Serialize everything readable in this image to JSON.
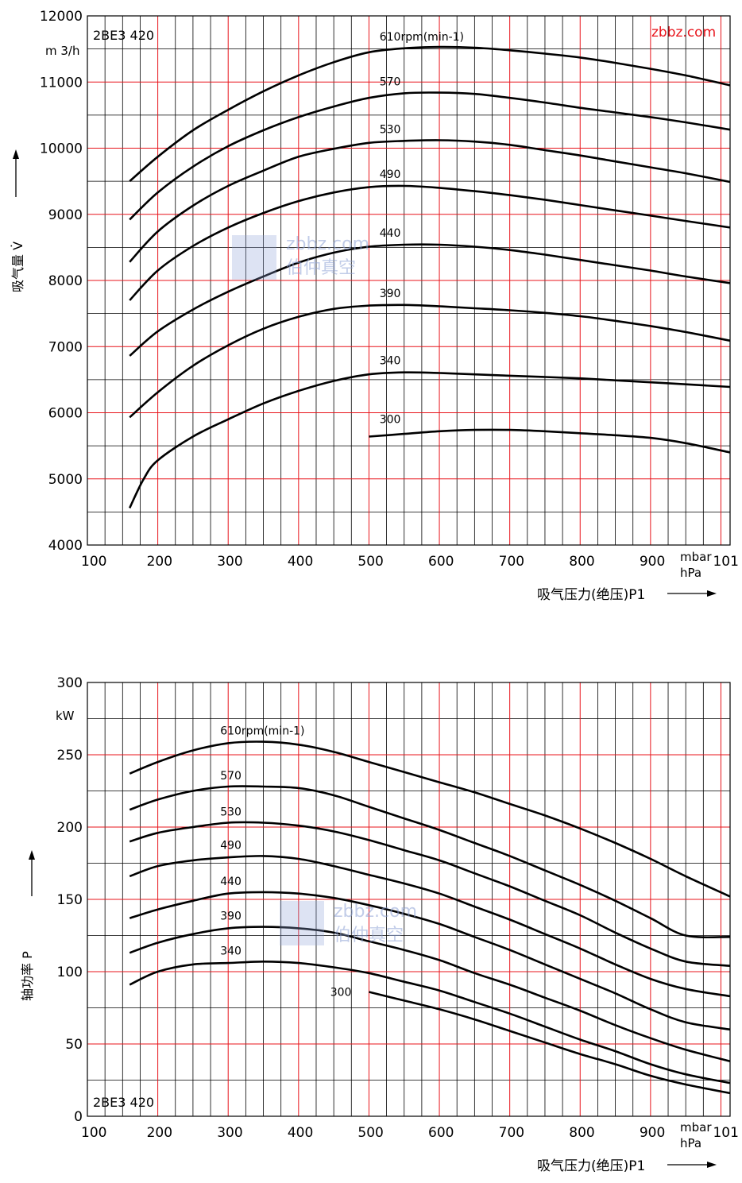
{
  "site_label": "zbbz.com",
  "watermark": {
    "line1": "zbbz.com",
    "line2": "伯仲真空"
  },
  "chart_data": [
    {
      "type": "line",
      "model": "2BE3 420",
      "y_unit": "m 3/h",
      "ylabel": "吸气量 V̇",
      "xlabel": "吸气压力(绝压)P1",
      "x_unit_1": "mbar",
      "x_unit_2": "hPa",
      "xlim": [
        100,
        1013
      ],
      "ylim": [
        4000,
        12000
      ],
      "x_ticks": [
        "100",
        "200",
        "300",
        "400",
        "500",
        "600",
        "700",
        "800",
        "900",
        "101"
      ],
      "y_ticks": [
        "4000",
        "5000",
        "6000",
        "7000",
        "8000",
        "9000",
        "10000",
        "11000",
        "12000"
      ],
      "series": [
        {
          "name": "610rpm(min-1)",
          "x": [
            160,
            200,
            250,
            300,
            350,
            400,
            450,
            500,
            550,
            600,
            650,
            700,
            750,
            800,
            850,
            900,
            950,
            1013
          ],
          "y": [
            9500,
            9870,
            10270,
            10580,
            10860,
            11100,
            11300,
            11450,
            11510,
            11530,
            11520,
            11480,
            11430,
            11370,
            11290,
            11200,
            11100,
            10950
          ]
        },
        {
          "name": "570",
          "x": [
            160,
            200,
            250,
            300,
            350,
            400,
            450,
            500,
            550,
            600,
            650,
            700,
            750,
            800,
            850,
            900,
            950,
            1013
          ],
          "y": [
            8920,
            9330,
            9720,
            10030,
            10270,
            10470,
            10630,
            10760,
            10830,
            10840,
            10820,
            10760,
            10690,
            10610,
            10540,
            10470,
            10390,
            10280
          ]
        },
        {
          "name": "530",
          "x": [
            160,
            200,
            250,
            300,
            350,
            400,
            450,
            500,
            550,
            600,
            650,
            700,
            750,
            800,
            850,
            900,
            950,
            1013
          ],
          "y": [
            8280,
            8740,
            9130,
            9430,
            9660,
            9870,
            9990,
            10080,
            10110,
            10120,
            10100,
            10050,
            9970,
            9890,
            9800,
            9710,
            9620,
            9490
          ]
        },
        {
          "name": "490",
          "x": [
            160,
            200,
            250,
            300,
            350,
            400,
            450,
            500,
            550,
            600,
            650,
            700,
            750,
            800,
            850,
            900,
            950,
            1013
          ],
          "y": [
            7700,
            8150,
            8520,
            8800,
            9020,
            9200,
            9330,
            9410,
            9430,
            9400,
            9350,
            9290,
            9220,
            9140,
            9060,
            8980,
            8900,
            8800
          ]
        },
        {
          "name": "440",
          "x": [
            160,
            200,
            250,
            300,
            350,
            400,
            450,
            500,
            550,
            600,
            650,
            700,
            750,
            800,
            850,
            900,
            950,
            1013
          ],
          "y": [
            6860,
            7230,
            7560,
            7830,
            8060,
            8270,
            8420,
            8510,
            8540,
            8540,
            8510,
            8460,
            8390,
            8310,
            8230,
            8150,
            8060,
            7960
          ]
        },
        {
          "name": "390",
          "x": [
            160,
            200,
            250,
            300,
            350,
            400,
            450,
            500,
            550,
            600,
            650,
            700,
            750,
            800,
            850,
            900,
            950,
            1013
          ],
          "y": [
            5930,
            6310,
            6710,
            7020,
            7270,
            7450,
            7570,
            7620,
            7630,
            7610,
            7580,
            7550,
            7510,
            7460,
            7390,
            7310,
            7220,
            7090
          ]
        },
        {
          "name": "340",
          "x": [
            160,
            180,
            200,
            250,
            300,
            350,
            400,
            450,
            500,
            550,
            600,
            650,
            700,
            750,
            800,
            850,
            900,
            950,
            1013
          ],
          "y": [
            4560,
            5000,
            5280,
            5640,
            5900,
            6140,
            6330,
            6480,
            6580,
            6610,
            6600,
            6580,
            6560,
            6540,
            6520,
            6490,
            6460,
            6430,
            6390
          ]
        },
        {
          "name": "300",
          "x": [
            500,
            550,
            600,
            650,
            700,
            750,
            800,
            850,
            900,
            950,
            1013
          ],
          "y": [
            5640,
            5680,
            5720,
            5740,
            5740,
            5720,
            5690,
            5660,
            5620,
            5540,
            5400
          ]
        }
      ]
    },
    {
      "type": "line",
      "model": "2BE3 420",
      "y_unit": "kW",
      "ylabel": "轴功率 P",
      "xlabel": "吸气压力(绝压)P1",
      "x_unit_1": "mbar",
      "x_unit_2": "hPa",
      "xlim": [
        100,
        1013
      ],
      "ylim": [
        0,
        300
      ],
      "x_ticks": [
        "100",
        "200",
        "300",
        "400",
        "500",
        "600",
        "700",
        "800",
        "900",
        "101"
      ],
      "y_ticks": [
        "0",
        "50",
        "100",
        "150",
        "200",
        "250",
        "300"
      ],
      "series": [
        {
          "name": "610rpm(min-1)",
          "x": [
            160,
            200,
            250,
            300,
            350,
            400,
            450,
            500,
            550,
            600,
            650,
            700,
            750,
            800,
            850,
            900,
            950,
            1013
          ],
          "y": [
            237,
            245,
            253,
            258,
            259,
            257,
            252,
            245,
            238,
            231,
            224,
            216,
            208,
            199,
            189,
            178,
            166,
            152
          ]
        },
        {
          "name": "570",
          "x": [
            160,
            200,
            250,
            300,
            350,
            400,
            450,
            500,
            550,
            600,
            650,
            700,
            750,
            800,
            850,
            900,
            950,
            1013
          ],
          "y": [
            212,
            219,
            225,
            228,
            228,
            227,
            222,
            214,
            206,
            198,
            189,
            180,
            170,
            160,
            149,
            137,
            125,
            124
          ]
        },
        {
          "name": "530",
          "x": [
            160,
            200,
            250,
            300,
            350,
            400,
            450,
            500,
            550,
            600,
            650,
            700,
            750,
            800,
            850,
            900,
            950,
            1013
          ],
          "y": [
            190,
            196,
            200,
            203,
            203,
            201,
            197,
            191,
            184,
            177,
            168,
            159,
            149,
            139,
            127,
            116,
            107,
            104
          ]
        },
        {
          "name": "490",
          "x": [
            160,
            200,
            250,
            300,
            350,
            400,
            450,
            500,
            550,
            600,
            650,
            700,
            750,
            800,
            850,
            900,
            950,
            1013
          ],
          "y": [
            166,
            173,
            177,
            179,
            180,
            178,
            173,
            167,
            161,
            154,
            145,
            136,
            126,
            116,
            105,
            95,
            88,
            83
          ]
        },
        {
          "name": "440",
          "x": [
            160,
            200,
            250,
            300,
            350,
            400,
            450,
            500,
            550,
            600,
            650,
            700,
            750,
            800,
            850,
            900,
            950,
            1013
          ],
          "y": [
            137,
            143,
            149,
            154,
            155,
            154,
            151,
            146,
            140,
            133,
            124,
            115,
            105,
            95,
            85,
            74,
            65,
            60
          ]
        },
        {
          "name": "390",
          "x": [
            160,
            200,
            250,
            300,
            350,
            400,
            450,
            500,
            550,
            600,
            650,
            700,
            750,
            800,
            850,
            900,
            950,
            1013
          ],
          "y": [
            113,
            120,
            126,
            130,
            131,
            130,
            127,
            121,
            115,
            108,
            99,
            91,
            82,
            73,
            63,
            54,
            46,
            38
          ]
        },
        {
          "name": "340",
          "x": [
            160,
            200,
            250,
            300,
            350,
            400,
            450,
            500,
            550,
            600,
            650,
            700,
            750,
            800,
            850,
            900,
            950,
            1013
          ],
          "y": [
            91,
            100,
            105,
            106,
            107,
            106,
            103,
            99,
            93,
            87,
            79,
            71,
            62,
            53,
            45,
            36,
            29,
            23
          ]
        },
        {
          "name": "300",
          "x": [
            500,
            550,
            600,
            650,
            700,
            750,
            800,
            850,
            900,
            950,
            1013
          ],
          "y": [
            86,
            80,
            74,
            67,
            59,
            51,
            43,
            36,
            28,
            22,
            16
          ]
        }
      ]
    }
  ]
}
